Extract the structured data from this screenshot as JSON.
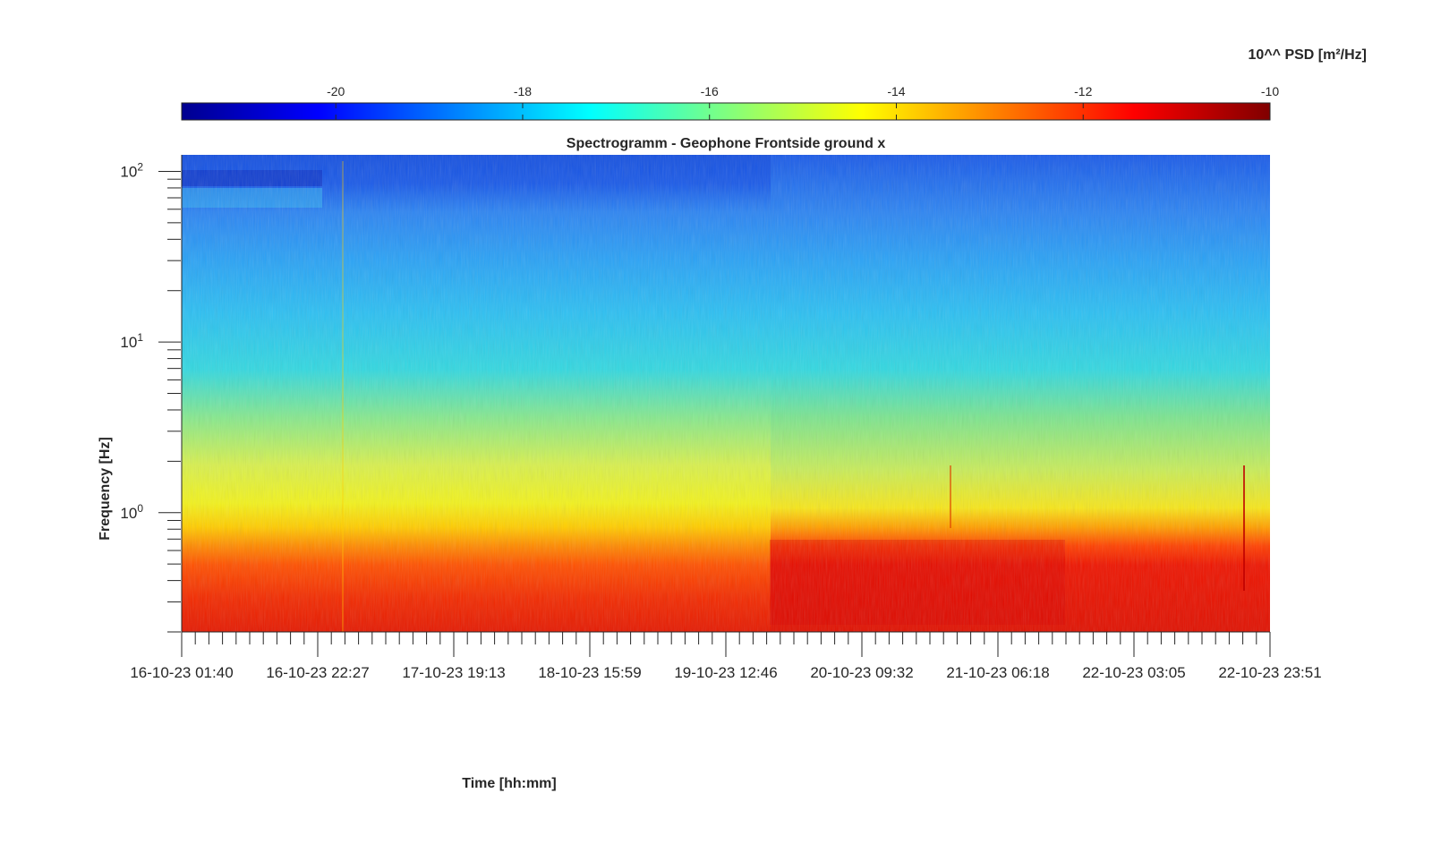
{
  "chart_data": {
    "type": "heatmap",
    "title": "Spectrogramm - Geophone Frontside ground x",
    "xlabel": "Time [hh:mm]",
    "ylabel": "Frequency [Hz]",
    "y_scale": "log",
    "ylim": [
      0.2,
      125
    ],
    "x_ticks": [
      "16-10-23 01:40",
      "16-10-23 22:27",
      "17-10-23 19:13",
      "18-10-23 15:59",
      "19-10-23 12:46",
      "20-10-23 09:32",
      "21-10-23 06:18",
      "22-10-23 03:05",
      "22-10-23 23:51"
    ],
    "x_range": [
      "16-10-23 01:40",
      "22-10-23 23:51"
    ],
    "y_ticks": [
      {
        "value": 1,
        "base": "10",
        "exp": "0"
      },
      {
        "value": 10,
        "base": "10",
        "exp": "1"
      },
      {
        "value": 100,
        "base": "10",
        "exp": "2"
      }
    ],
    "colorbar": {
      "label": "10^^ PSD [m²/Hz]",
      "range": [
        -21.65,
        -10
      ],
      "ticks": [
        "-20",
        "-18",
        "-16",
        "-14",
        "-12",
        "-10"
      ],
      "tick_values": [
        -20,
        -18,
        -16,
        -14,
        -12,
        -10
      ],
      "colormap": "jet",
      "orientation": "horizontal",
      "placement": "top"
    },
    "levels_by_frequency": [
      {
        "freq": 0.25,
        "psd_log10": -11.5
      },
      {
        "freq": 0.6,
        "psd_log10": -12.2
      },
      {
        "freq": 1.0,
        "psd_log10": -14.0
      },
      {
        "freq": 3.0,
        "psd_log10": -14.8
      },
      {
        "freq": 10,
        "psd_log10": -16.8
      },
      {
        "freq": 30,
        "psd_log10": -17.6
      },
      {
        "freq": 60,
        "psd_log10": -18.8
      },
      {
        "freq": 100,
        "psd_log10": -19.8
      }
    ],
    "grid": false
  }
}
